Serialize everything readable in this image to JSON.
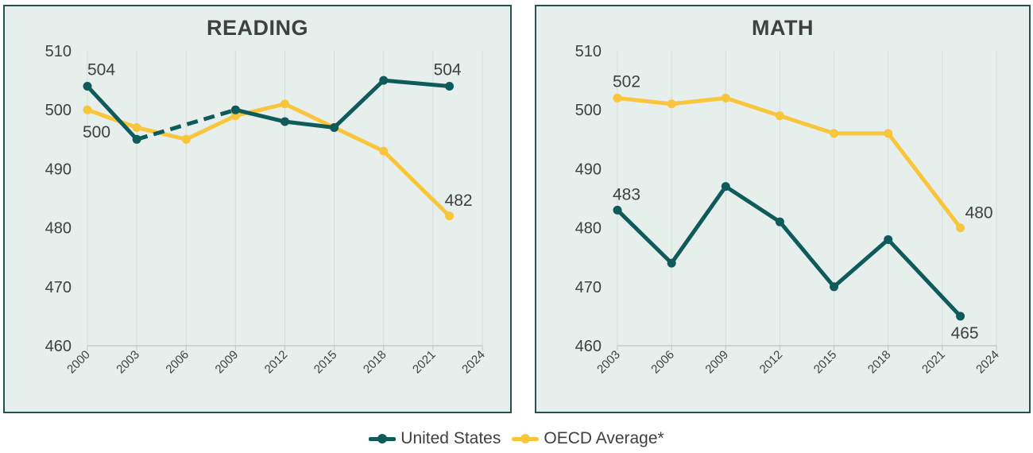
{
  "colors": {
    "us": "#0f5a5a",
    "oecd": "#f9c53b",
    "grid": "#d6dcda",
    "axis": "#bfc7c4",
    "text": "#404040"
  },
  "legend": {
    "us_label": "United States",
    "oecd_label": "OECD Average*"
  },
  "chart_data": [
    {
      "type": "line",
      "title": "READING",
      "xlim": [
        2000,
        2024
      ],
      "xticks": [
        "2000",
        "2003",
        "2006",
        "2009",
        "2012",
        "2015",
        "2018",
        "2021",
        "2024"
      ],
      "ylim": [
        460,
        510
      ],
      "yticks": [
        "460",
        "470",
        "480",
        "490",
        "500",
        "510"
      ],
      "series": [
        {
          "name": "United States",
          "key": "us",
          "x": [
            2000,
            2003,
            2006,
            2009,
            2012,
            2015,
            2018,
            2022
          ],
          "y": [
            504,
            495,
            null,
            500,
            498,
            497,
            505,
            504
          ],
          "dashed_gap": {
            "from": 2003,
            "to": 2009
          }
        },
        {
          "name": "OECD Average*",
          "key": "oecd",
          "x": [
            2000,
            2003,
            2006,
            2009,
            2012,
            2015,
            2018,
            2022
          ],
          "y": [
            500,
            497,
            495,
            499,
            501,
            497,
            493,
            482
          ]
        }
      ],
      "annotations": [
        {
          "text": "504",
          "series": "us",
          "x": 2000
        },
        {
          "text": "500",
          "series": "oecd",
          "x": 2000
        },
        {
          "text": "504",
          "series": "us",
          "x": 2022
        },
        {
          "text": "482",
          "series": "oecd",
          "x": 2022
        }
      ]
    },
    {
      "type": "line",
      "title": "MATH",
      "xlim": [
        2003,
        2024
      ],
      "xticks": [
        "2003",
        "2006",
        "2009",
        "2012",
        "2015",
        "2018",
        "2021",
        "2024"
      ],
      "ylim": [
        460,
        510
      ],
      "yticks": [
        "460",
        "470",
        "480",
        "490",
        "500",
        "510"
      ],
      "series": [
        {
          "name": "United States",
          "key": "us",
          "x": [
            2003,
            2006,
            2009,
            2012,
            2015,
            2018,
            2022
          ],
          "y": [
            483,
            474,
            487,
            481,
            470,
            478,
            465
          ]
        },
        {
          "name": "OECD Average*",
          "key": "oecd",
          "x": [
            2003,
            2006,
            2009,
            2012,
            2015,
            2018,
            2022
          ],
          "y": [
            502,
            501,
            502,
            499,
            496,
            496,
            480
          ]
        }
      ],
      "annotations": [
        {
          "text": "502",
          "series": "oecd",
          "x": 2003
        },
        {
          "text": "483",
          "series": "us",
          "x": 2003
        },
        {
          "text": "480",
          "series": "oecd",
          "x": 2022
        },
        {
          "text": "465",
          "series": "us",
          "x": 2022
        }
      ]
    }
  ]
}
